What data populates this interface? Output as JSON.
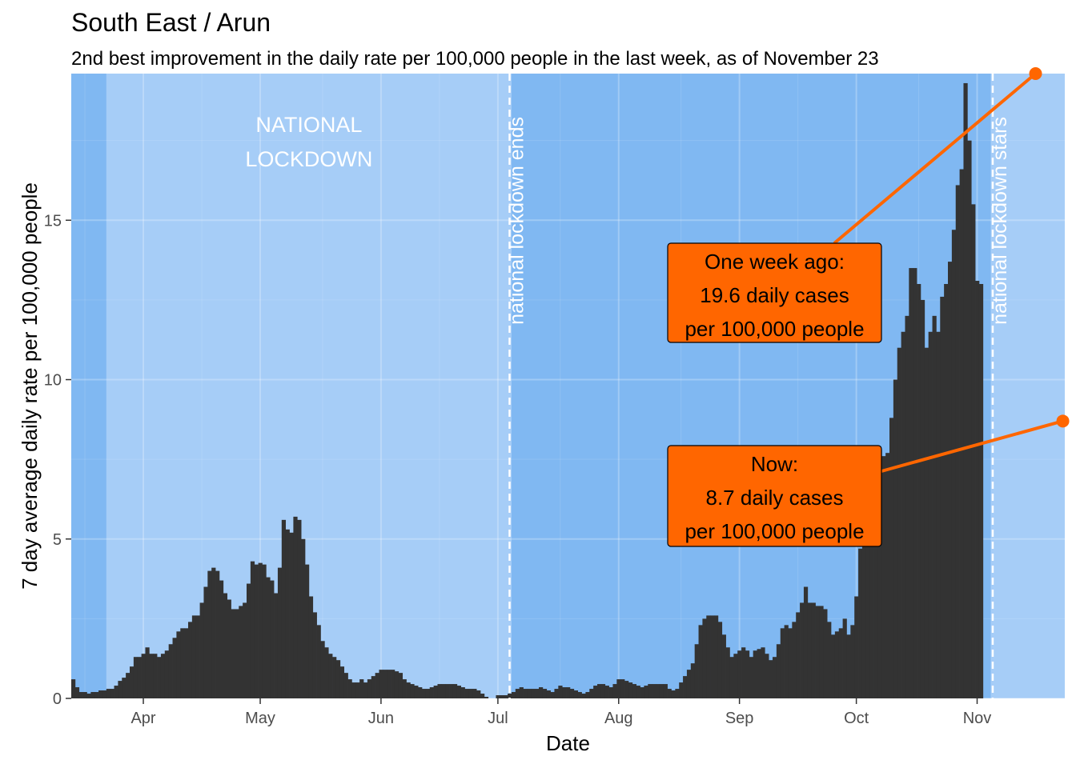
{
  "chart_data": {
    "type": "bar",
    "title": "South East / Arun",
    "subtitle": "2nd best improvement in the daily rate per 100,000 people in the last week, as of November 23",
    "xlabel": "Date",
    "ylabel": "7 day average daily rate per 100,000 people",
    "x_start": "2020-03-14",
    "x_end": "2020-11-23",
    "ylim": [
      0,
      19.6
    ],
    "yticks": [
      0,
      5,
      10,
      15
    ],
    "xticks": [
      {
        "label": "Apr",
        "date": "2020-04-01"
      },
      {
        "label": "May",
        "date": "2020-05-01"
      },
      {
        "label": "Jun",
        "date": "2020-06-01"
      },
      {
        "label": "Jul",
        "date": "2020-07-01"
      },
      {
        "label": "Aug",
        "date": "2020-08-01"
      },
      {
        "label": "Sep",
        "date": "2020-09-01"
      },
      {
        "label": "Oct",
        "date": "2020-10-01"
      },
      {
        "label": "Nov",
        "date": "2020-11-01"
      }
    ],
    "grid": true,
    "colors": {
      "background_dark": "#80b8f2",
      "background_light": "#a6cdf7",
      "bars": "#333333",
      "callout": "#ff6600",
      "event_line": "#ffffff"
    },
    "shaded_periods": [
      {
        "start": "2020-03-23",
        "end": "2020-07-04",
        "label": "NATIONAL\nLOCKDOWN"
      },
      {
        "start": "2020-11-05",
        "end": "2020-11-23",
        "label": ""
      }
    ],
    "events": [
      {
        "date": "2020-07-04",
        "label": "national lockdown ends"
      },
      {
        "date": "2020-11-05",
        "label": "national lockdown stars"
      }
    ],
    "values": [
      0.6,
      0.35,
      0.2,
      0.2,
      0.15,
      0.2,
      0.2,
      0.25,
      0.25,
      0.3,
      0.3,
      0.4,
      0.55,
      0.65,
      0.8,
      1.0,
      1.3,
      1.3,
      1.4,
      1.6,
      1.4,
      1.4,
      1.3,
      1.4,
      1.5,
      1.7,
      1.9,
      2.1,
      2.2,
      2.2,
      2.4,
      2.6,
      2.6,
      3.0,
      3.5,
      4.0,
      4.1,
      4.0,
      3.7,
      3.3,
      3.1,
      2.8,
      2.8,
      2.9,
      3.0,
      3.6,
      4.3,
      4.2,
      4.25,
      4.2,
      3.8,
      3.7,
      3.3,
      4.1,
      5.6,
      5.3,
      5.2,
      5.7,
      5.6,
      5.0,
      4.2,
      3.2,
      2.7,
      2.3,
      1.8,
      1.6,
      1.4,
      1.3,
      1.2,
      1.0,
      0.8,
      0.6,
      0.5,
      0.5,
      0.6,
      0.5,
      0.6,
      0.7,
      0.8,
      0.9,
      0.9,
      0.9,
      0.9,
      0.85,
      0.8,
      0.6,
      0.5,
      0.45,
      0.4,
      0.35,
      0.3,
      0.3,
      0.35,
      0.4,
      0.45,
      0.45,
      0.45,
      0.45,
      0.45,
      0.4,
      0.35,
      0.3,
      0.3,
      0.3,
      0.25,
      0.15,
      0.05,
      0.0,
      0.0,
      0.1,
      0.1,
      0.1,
      0.15,
      0.2,
      0.3,
      0.35,
      0.3,
      0.3,
      0.3,
      0.3,
      0.35,
      0.3,
      0.25,
      0.2,
      0.3,
      0.4,
      0.35,
      0.35,
      0.3,
      0.25,
      0.2,
      0.15,
      0.2,
      0.3,
      0.4,
      0.45,
      0.45,
      0.4,
      0.35,
      0.45,
      0.6,
      0.6,
      0.55,
      0.5,
      0.45,
      0.4,
      0.35,
      0.4,
      0.45,
      0.45,
      0.45,
      0.45,
      0.45,
      0.3,
      0.25,
      0.3,
      0.5,
      0.7,
      0.9,
      1.1,
      1.7,
      2.3,
      2.5,
      2.6,
      2.6,
      2.6,
      2.4,
      2.0,
      1.6,
      1.3,
      1.4,
      1.5,
      1.6,
      1.5,
      1.3,
      1.5,
      1.55,
      1.6,
      1.4,
      1.2,
      1.3,
      1.7,
      2.2,
      2.3,
      2.2,
      2.4,
      2.7,
      3.0,
      3.5,
      3.0,
      3.0,
      2.9,
      2.9,
      2.8,
      2.4,
      2.0,
      2.1,
      2.2,
      2.5,
      2.0,
      2.3,
      3.2,
      4.7,
      5.5,
      6.4,
      7.0,
      7.5,
      7.8,
      7.6,
      7.7,
      8.8,
      10.0,
      11.0,
      11.5,
      12.0,
      13.5,
      13.5,
      13.0,
      12.5,
      11.0,
      11.5,
      12.0,
      11.5,
      12.6,
      13.0,
      13.7,
      14.7,
      16.1,
      16.6,
      19.3,
      17.5,
      15.5,
      13.1,
      13.0
    ]
  },
  "callouts": [
    {
      "key": "week_ago",
      "date": "2020-11-16",
      "value": 19.6,
      "lines": [
        "One week ago:",
        "19.6 daily cases",
        "per 100,000 people"
      ]
    },
    {
      "key": "now",
      "date": "2020-11-23",
      "value": 8.7,
      "lines": [
        "Now:",
        "8.7 daily cases",
        "per 100,000 people"
      ]
    }
  ]
}
